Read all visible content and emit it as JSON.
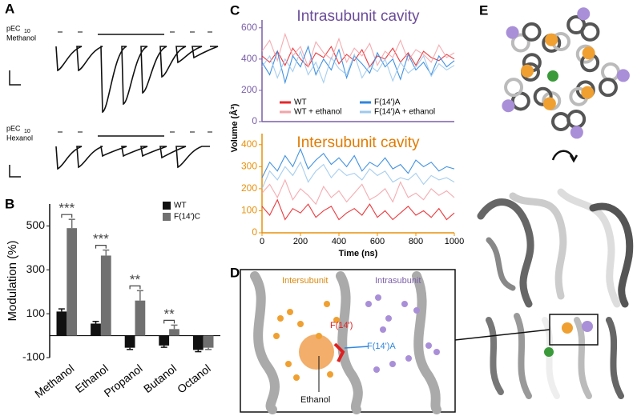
{
  "panels": [
    "A",
    "B",
    "C",
    "D",
    "E"
  ],
  "panel_a": {
    "rows": [
      {
        "label": "pEC",
        "subscript": "10",
        "compound": "Methanol"
      },
      {
        "label": "pEC",
        "subscript": "10",
        "compound": "Hexanol"
      }
    ]
  },
  "chart_data": [
    {
      "type": "bar",
      "ylabel": "Modulation (%)",
      "categories": [
        "Methanol",
        "Ethanol",
        "Propanol",
        "Butanol",
        "Octanol"
      ],
      "series": [
        {
          "name": "WT",
          "color": "#111111",
          "values": [
            110,
            55,
            -55,
            -45,
            -65
          ],
          "errors": [
            12,
            10,
            8,
            8,
            8
          ]
        },
        {
          "name": "F(14')C",
          "color": "#707070",
          "values": [
            490,
            365,
            160,
            30,
            -55
          ],
          "errors": [
            40,
            25,
            45,
            18,
            8
          ]
        }
      ],
      "ylim": [
        -100,
        600
      ],
      "yticks": [
        -100,
        100,
        300,
        500
      ],
      "annotations": [
        "***",
        "***",
        "**",
        "**"
      ],
      "legend": "upper right"
    },
    {
      "type": "line",
      "title": "Intrasubunit cavity",
      "title_color": "#6b4c9a",
      "axis_color": "#7a5fa8",
      "ylabel": "Volume (Å³)",
      "x": [
        0,
        40,
        80,
        120,
        160,
        200,
        240,
        280,
        320,
        360,
        400,
        440,
        480,
        520,
        560,
        600,
        640,
        680,
        720,
        760,
        800,
        840,
        880,
        920,
        960,
        1000
      ],
      "xlim": [
        0,
        1000
      ],
      "ylim": [
        0,
        650
      ],
      "yticks": [
        0,
        200,
        400,
        600
      ],
      "legend": "lower center",
      "series": [
        {
          "name": "WT",
          "color": "#e8262a",
          "values": [
            420,
            380,
            450,
            360,
            470,
            400,
            350,
            440,
            410,
            480,
            370,
            430,
            390,
            460,
            350,
            420,
            400,
            470,
            380,
            440,
            360,
            450,
            410,
            390,
            430,
            400
          ]
        },
        {
          "name": "WT + ethanol",
          "color": "#f4a3a8",
          "values": [
            450,
            520,
            390,
            560,
            420,
            480,
            350,
            510,
            440,
            400,
            530,
            380,
            470,
            420,
            500,
            360,
            450,
            410,
            520,
            390,
            460,
            430,
            380,
            490,
            410,
            440
          ]
        },
        {
          "name": "F(14')A",
          "color": "#2e86de",
          "values": [
            380,
            300,
            450,
            250,
            420,
            350,
            480,
            300,
            400,
            330,
            460,
            280,
            420,
            370,
            310,
            440,
            350,
            400,
            270,
            430,
            330,
            380,
            300,
            420,
            350,
            390
          ]
        },
        {
          "name": "F(14')A + ethanol",
          "color": "#9cc9ee",
          "values": [
            350,
            420,
            280,
            400,
            320,
            450,
            300,
            380,
            250,
            410,
            340,
            300,
            430,
            280,
            360,
            320,
            400,
            260,
            380,
            310,
            350,
            420,
            290,
            370,
            330,
            360
          ]
        }
      ]
    },
    {
      "type": "line",
      "title": "Intersubunit cavity",
      "title_color": "#e07b00",
      "axis_color": "#e8900a",
      "x": [
        0,
        40,
        80,
        120,
        160,
        200,
        240,
        280,
        320,
        360,
        400,
        440,
        480,
        520,
        560,
        600,
        640,
        680,
        720,
        760,
        800,
        840,
        880,
        920,
        960,
        1000
      ],
      "xlim": [
        0,
        1000
      ],
      "xticks": [
        0,
        200,
        400,
        600,
        800,
        1000
      ],
      "xlabel": "Time (ns)",
      "ylim": [
        0,
        450
      ],
      "yticks": [
        0,
        100,
        200,
        300,
        400
      ],
      "series": [
        {
          "color": "#e8262a",
          "values": [
            120,
            80,
            150,
            60,
            110,
            90,
            130,
            70,
            100,
            120,
            60,
            90,
            110,
            80,
            130,
            70,
            100,
            60,
            90,
            120,
            80,
            100,
            70,
            110,
            60,
            90
          ]
        },
        {
          "color": "#f4a3a8",
          "values": [
            180,
            220,
            160,
            240,
            150,
            200,
            170,
            130,
            210,
            160,
            190,
            140,
            180,
            220,
            150,
            170,
            200,
            140,
            230,
            160,
            180,
            150,
            200,
            170,
            190,
            160
          ]
        },
        {
          "color": "#2e86de",
          "values": [
            250,
            320,
            280,
            350,
            300,
            380,
            290,
            330,
            360,
            310,
            340,
            300,
            350,
            280,
            320,
            300,
            340,
            290,
            310,
            270,
            330,
            300,
            320,
            280,
            300,
            290
          ]
        },
        {
          "color": "#9cc9ee",
          "values": [
            200,
            280,
            240,
            300,
            260,
            320,
            230,
            280,
            310,
            250,
            290,
            260,
            270,
            240,
            290,
            260,
            280,
            230,
            250,
            240,
            270,
            220,
            260,
            240,
            250,
            230
          ]
        }
      ]
    }
  ],
  "panel_d": {
    "intersubunit": "Intersubunit",
    "intrasubunit": "Intrasubunit",
    "residue": "F(14')",
    "mutant": "F(14')A",
    "ligand": "Ethanol"
  }
}
